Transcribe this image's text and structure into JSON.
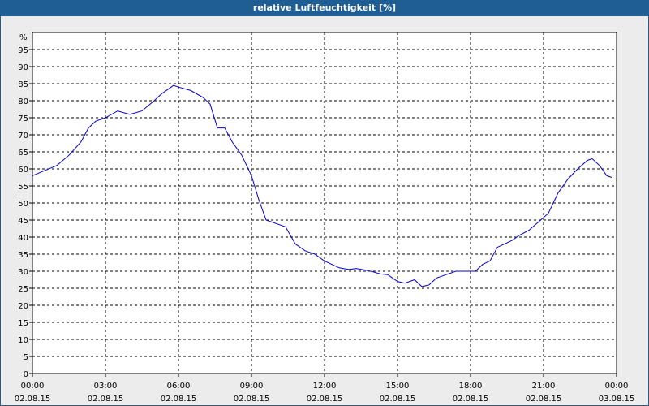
{
  "chart_data": {
    "type": "line",
    "title": "relative Luftfeuchtigkeit [%]",
    "y_unit": "%",
    "ylim": [
      0,
      100
    ],
    "yticks": [
      0,
      5,
      10,
      15,
      20,
      25,
      30,
      35,
      40,
      45,
      50,
      55,
      60,
      65,
      70,
      75,
      80,
      85,
      90,
      95
    ],
    "xlim": [
      0,
      24
    ],
    "xticks": [
      {
        "x": 0,
        "time": "00:00",
        "date": "02.08.15"
      },
      {
        "x": 3,
        "time": "03:00",
        "date": "02.08.15"
      },
      {
        "x": 6,
        "time": "06:00",
        "date": "02.08.15"
      },
      {
        "x": 9,
        "time": "09:00",
        "date": "02.08.15"
      },
      {
        "x": 12,
        "time": "12:00",
        "date": "02.08.15"
      },
      {
        "x": 15,
        "time": "15:00",
        "date": "02.08.15"
      },
      {
        "x": 18,
        "time": "18:00",
        "date": "02.08.15"
      },
      {
        "x": 21,
        "time": "21:00",
        "date": "02.08.15"
      },
      {
        "x": 24,
        "time": "00:00",
        "date": "03.08.15"
      }
    ],
    "grid": true,
    "line_color": "#0000cc",
    "series": [
      {
        "x": [
          0,
          0.5,
          1.0,
          1.5,
          2.0,
          2.3,
          2.6,
          3.0,
          3.5,
          4.0,
          4.5,
          5.0,
          5.3,
          5.6,
          5.8,
          6.0,
          6.5,
          7.0,
          7.3,
          7.6,
          7.9,
          8.2,
          8.6,
          9.0,
          9.3,
          9.6,
          10.0,
          10.4,
          10.8,
          11.2,
          11.6,
          12.0,
          12.3,
          12.6,
          13.0,
          13.3,
          13.7,
          14.0,
          14.3,
          14.6,
          15.0,
          15.3,
          15.7,
          16.0,
          16.3,
          16.6,
          17.0,
          17.4,
          17.8,
          18.2,
          18.5,
          18.8,
          19.1,
          19.4,
          19.7,
          20.0,
          20.4,
          20.8,
          21.2,
          21.6,
          22.0,
          22.4,
          22.8,
          23.0,
          23.3,
          23.6,
          23.8
        ],
        "y": [
          58,
          59.5,
          61,
          64,
          68,
          72,
          74,
          75,
          77,
          76,
          77,
          80,
          82,
          83.5,
          84.5,
          84,
          83,
          81,
          79,
          72,
          72,
          68,
          64,
          58,
          51,
          45,
          44,
          43,
          38,
          36,
          35,
          33,
          32,
          31,
          30.5,
          30.8,
          30.3,
          29.8,
          29.2,
          29,
          27,
          26.5,
          27.5,
          25.5,
          26,
          28,
          29,
          30,
          30,
          30,
          32,
          33,
          37,
          38,
          39,
          40.5,
          42,
          44.5,
          47,
          53,
          57,
          60,
          62.5,
          63,
          61,
          58,
          57.5
        ]
      }
    ]
  }
}
